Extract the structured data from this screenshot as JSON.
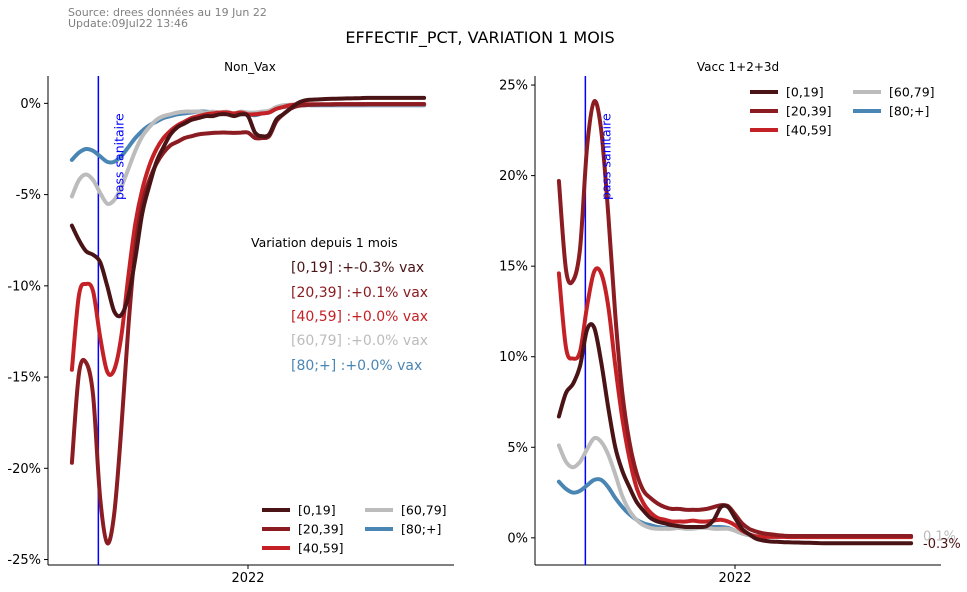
{
  "source_line1": "Source: drees données au 19 Jun 22",
  "source_line2": "Update:09Jul22 13:46",
  "suptitle": "EFFECTIF_PCT, VARIATION 1 MOIS",
  "colors": {
    "[0,19]": "#4a1416",
    "[20,39]": "#8b1c22",
    "[40,59]": "#c42126",
    "[60,79]": "#bcbcbc",
    "[80;+]": "#4a86b4",
    "vline": "#0000ff"
  },
  "vline_label": "pass sanitaire",
  "chart_data": [
    {
      "type": "line",
      "title": "Non_Vax",
      "xlabel": "",
      "ylabel": "",
      "x_tick_label": "2022",
      "x": [
        0,
        2,
        4,
        6,
        8,
        10,
        12,
        14,
        16,
        18,
        20,
        22,
        24,
        26,
        28,
        30,
        32,
        34,
        36,
        38,
        40,
        42,
        44,
        46,
        48,
        50,
        52,
        54,
        56,
        58,
        60,
        62,
        64,
        66,
        68,
        70,
        72,
        74,
        76,
        78,
        80,
        82,
        84,
        86,
        88,
        90,
        92,
        94,
        96,
        98,
        100
      ],
      "ylim": [
        -25.3,
        1.5
      ],
      "yticks": [
        0,
        -5,
        -10,
        -15,
        -20,
        -25
      ],
      "ytick_labels": [
        "0%",
        "-5%",
        "-10%",
        "-15%",
        "-20%",
        "-25%"
      ],
      "vline_x": 7.5,
      "annotation": {
        "title": "Variation depuis 1 mois",
        "lines": [
          {
            "key": "[0,19]",
            "text": "[0,19]  :+-0.3% vax"
          },
          {
            "key": "[20,39]",
            "text": "[20,39] :+0.1% vax"
          },
          {
            "key": "[40,59]",
            "text": "[40,59] :+0.0% vax"
          },
          {
            "key": "[60,79]",
            "text": "[60,79] :+0.0% vax"
          },
          {
            "key": "[80;+]",
            "text": "[80;+]  :+0.0% vax"
          }
        ]
      },
      "legend_position": "lower-right",
      "legend_columns": 2,
      "series": [
        {
          "name": "[0,19]",
          "values": [
            -6.7,
            -7.5,
            -8.1,
            -8.3,
            -8.7,
            -10.0,
            -11.4,
            -11.6,
            -10.6,
            -8.5,
            -6.0,
            -4.5,
            -3.2,
            -2.4,
            -1.7,
            -1.3,
            -1.1,
            -0.9,
            -0.8,
            -0.7,
            -0.7,
            -0.6,
            -0.6,
            -0.7,
            -0.6,
            -0.7,
            -1.6,
            -1.8,
            -1.7,
            -0.9,
            -0.6,
            -0.3,
            0.0,
            0.15,
            0.2,
            0.22,
            0.24,
            0.25,
            0.26,
            0.27,
            0.28,
            0.29,
            0.3,
            0.3,
            0.3,
            0.3,
            0.3,
            0.3,
            0.3,
            0.3,
            0.3
          ]
        },
        {
          "name": "[20,39]",
          "values": [
            -19.7,
            -14.8,
            -14.2,
            -16.0,
            -21.6,
            -24.1,
            -22.5,
            -17.9,
            -12.3,
            -8.0,
            -5.5,
            -4.2,
            -3.3,
            -2.7,
            -2.3,
            -2.1,
            -1.9,
            -1.8,
            -1.7,
            -1.65,
            -1.62,
            -1.6,
            -1.6,
            -1.62,
            -1.6,
            -1.6,
            -1.9,
            -1.9,
            -1.8,
            -1.0,
            -0.6,
            -0.3,
            -0.15,
            -0.1,
            -0.08,
            -0.07,
            -0.06,
            -0.06,
            -0.05,
            -0.05,
            -0.05,
            -0.05,
            -0.04,
            -0.04,
            -0.04,
            -0.04,
            -0.04,
            -0.04,
            -0.04,
            -0.04,
            -0.04
          ]
        },
        {
          "name": "[40,59]",
          "values": [
            -14.6,
            -10.5,
            -9.9,
            -10.3,
            -12.8,
            -14.7,
            -14.6,
            -12.8,
            -9.5,
            -6.6,
            -4.7,
            -3.4,
            -2.5,
            -1.9,
            -1.5,
            -1.2,
            -1.0,
            -0.8,
            -0.7,
            -0.6,
            -0.55,
            -0.5,
            -0.5,
            -0.55,
            -0.5,
            -0.6,
            -0.6,
            -0.55,
            -0.5,
            -0.3,
            -0.2,
            -0.1,
            -0.06,
            -0.05,
            -0.05,
            -0.05,
            -0.05,
            -0.04,
            -0.04,
            -0.04,
            -0.04,
            -0.04,
            -0.04,
            -0.04,
            -0.04,
            -0.04,
            -0.04,
            -0.04,
            -0.04,
            -0.04,
            -0.04
          ]
        },
        {
          "name": "[60,79]",
          "values": [
            -5.1,
            -4.2,
            -3.9,
            -4.2,
            -4.9,
            -5.5,
            -5.3,
            -4.6,
            -3.6,
            -2.6,
            -1.8,
            -1.3,
            -0.9,
            -0.7,
            -0.6,
            -0.5,
            -0.45,
            -0.45,
            -0.45,
            -0.5,
            -0.45,
            -0.5,
            -0.45,
            -0.55,
            -0.45,
            -0.5,
            -0.5,
            -0.45,
            -0.4,
            -0.2,
            -0.1,
            -0.08,
            -0.07,
            -0.07,
            -0.07,
            -0.07,
            -0.07,
            -0.07,
            -0.07,
            -0.07,
            -0.07,
            -0.07,
            -0.07,
            -0.07,
            -0.07,
            -0.07,
            -0.07,
            -0.07,
            -0.07,
            -0.07,
            -0.07
          ]
        },
        {
          "name": "[80;+]",
          "values": [
            -3.1,
            -2.7,
            -2.5,
            -2.6,
            -2.9,
            -3.2,
            -3.2,
            -2.9,
            -2.4,
            -1.9,
            -1.5,
            -1.2,
            -1.0,
            -0.8,
            -0.7,
            -0.6,
            -0.55,
            -0.5,
            -0.45,
            -0.45,
            -0.5,
            -0.5,
            -0.55,
            -0.6,
            -0.6,
            -0.6,
            -0.65,
            -0.55,
            -0.5,
            -0.3,
            -0.2,
            -0.15,
            -0.12,
            -0.1,
            -0.1,
            -0.1,
            -0.1,
            -0.1,
            -0.1,
            -0.1,
            -0.1,
            -0.1,
            -0.1,
            -0.1,
            -0.1,
            -0.1,
            -0.1,
            -0.1,
            -0.1,
            -0.1,
            -0.1
          ]
        }
      ]
    },
    {
      "type": "line",
      "title": "Vacc 1+2+3d",
      "xlabel": "",
      "ylabel": "",
      "x_tick_label": "2022",
      "x": [
        0,
        2,
        4,
        6,
        8,
        10,
        12,
        14,
        16,
        18,
        20,
        22,
        24,
        26,
        28,
        30,
        32,
        34,
        36,
        38,
        40,
        42,
        44,
        46,
        48,
        50,
        52,
        54,
        56,
        58,
        60,
        62,
        64,
        66,
        68,
        70,
        72,
        74,
        76,
        78,
        80,
        82,
        84,
        86,
        88,
        90,
        92,
        94,
        96,
        98,
        100
      ],
      "ylim": [
        -1.5,
        25.5
      ],
      "yticks": [
        0,
        5,
        10,
        15,
        20,
        25
      ],
      "ytick_labels": [
        "0%",
        "5%",
        "10%",
        "15%",
        "20%",
        "25%"
      ],
      "vline_x": 7.5,
      "end_labels": [
        {
          "key": "[60,79]",
          "text": "0.1%",
          "value": 0.1
        },
        {
          "key": "[0,19]",
          "text": "-0.3%",
          "value": -0.3
        }
      ],
      "legend_position": "upper-right",
      "legend_columns": 2,
      "series": [
        {
          "name": "[0,19]",
          "values": [
            6.7,
            8.0,
            8.5,
            9.5,
            11.5,
            11.6,
            9.7,
            7.2,
            5.0,
            3.7,
            2.8,
            2.0,
            1.5,
            1.1,
            0.9,
            0.8,
            0.7,
            0.65,
            0.6,
            0.6,
            0.6,
            0.65,
            1.0,
            1.7,
            1.7,
            1.1,
            0.5,
            0.2,
            -0.05,
            -0.15,
            -0.2,
            -0.22,
            -0.24,
            -0.25,
            -0.26,
            -0.27,
            -0.28,
            -0.29,
            -0.3,
            -0.3,
            -0.3,
            -0.3,
            -0.3,
            -0.3,
            -0.3,
            -0.3,
            -0.3,
            -0.3,
            -0.3,
            -0.3,
            -0.3
          ]
        },
        {
          "name": "[20,39]",
          "values": [
            19.7,
            14.8,
            14.2,
            16.0,
            21.6,
            24.1,
            22.5,
            17.9,
            12.3,
            8.0,
            5.3,
            3.6,
            2.6,
            2.2,
            1.9,
            1.7,
            1.6,
            1.6,
            1.55,
            1.55,
            1.55,
            1.6,
            1.7,
            1.8,
            1.75,
            1.3,
            0.8,
            0.5,
            0.35,
            0.25,
            0.2,
            0.15,
            0.12,
            0.1,
            0.1,
            0.1,
            0.1,
            0.1,
            0.1,
            0.1,
            0.1,
            0.1,
            0.1,
            0.1,
            0.1,
            0.1,
            0.1,
            0.1,
            0.1,
            0.1,
            0.1
          ]
        },
        {
          "name": "[40,59]",
          "values": [
            14.6,
            10.5,
            9.9,
            10.3,
            12.8,
            14.7,
            14.6,
            12.8,
            9.5,
            6.6,
            4.4,
            2.8,
            1.9,
            1.4,
            1.1,
            1.0,
            0.9,
            0.9,
            0.9,
            0.95,
            0.9,
            0.9,
            0.95,
            1.0,
            0.9,
            0.7,
            0.4,
            0.2,
            0.08,
            0.05,
            0.05,
            0.05,
            0.05,
            0.04,
            0.04,
            0.04,
            0.04,
            0.04,
            0.04,
            0.04,
            0.04,
            0.04,
            0.04,
            0.04,
            0.04,
            0.04,
            0.04,
            0.04,
            0.04,
            0.04,
            0.04
          ]
        },
        {
          "name": "[60,79]",
          "values": [
            5.1,
            4.2,
            3.9,
            4.2,
            4.9,
            5.5,
            5.3,
            4.6,
            3.5,
            2.3,
            1.5,
            1.0,
            0.7,
            0.55,
            0.5,
            0.5,
            0.5,
            0.55,
            0.5,
            0.5,
            0.55,
            0.55,
            0.5,
            0.5,
            0.5,
            0.4,
            0.25,
            0.15,
            0.1,
            0.1,
            0.1,
            0.1,
            0.1,
            0.1,
            0.1,
            0.1,
            0.1,
            0.1,
            0.1,
            0.1,
            0.1,
            0.1,
            0.1,
            0.1,
            0.1,
            0.1,
            0.1,
            0.1,
            0.1,
            0.1,
            0.1
          ]
        },
        {
          "name": "[80;+]",
          "values": [
            3.1,
            2.7,
            2.5,
            2.6,
            2.9,
            3.2,
            3.2,
            2.8,
            2.2,
            1.7,
            1.3,
            1.0,
            0.8,
            0.7,
            0.6,
            0.55,
            0.55,
            0.55,
            0.55,
            0.55,
            0.6,
            0.6,
            0.6,
            0.6,
            0.55,
            0.4,
            0.25,
            0.15,
            0.1,
            0.08,
            0.07,
            0.07,
            0.07,
            0.07,
            0.07,
            0.07,
            0.07,
            0.07,
            0.07,
            0.07,
            0.07,
            0.07,
            0.07,
            0.07,
            0.07,
            0.07,
            0.07,
            0.07,
            0.07,
            0.07,
            0.07
          ]
        }
      ]
    }
  ]
}
